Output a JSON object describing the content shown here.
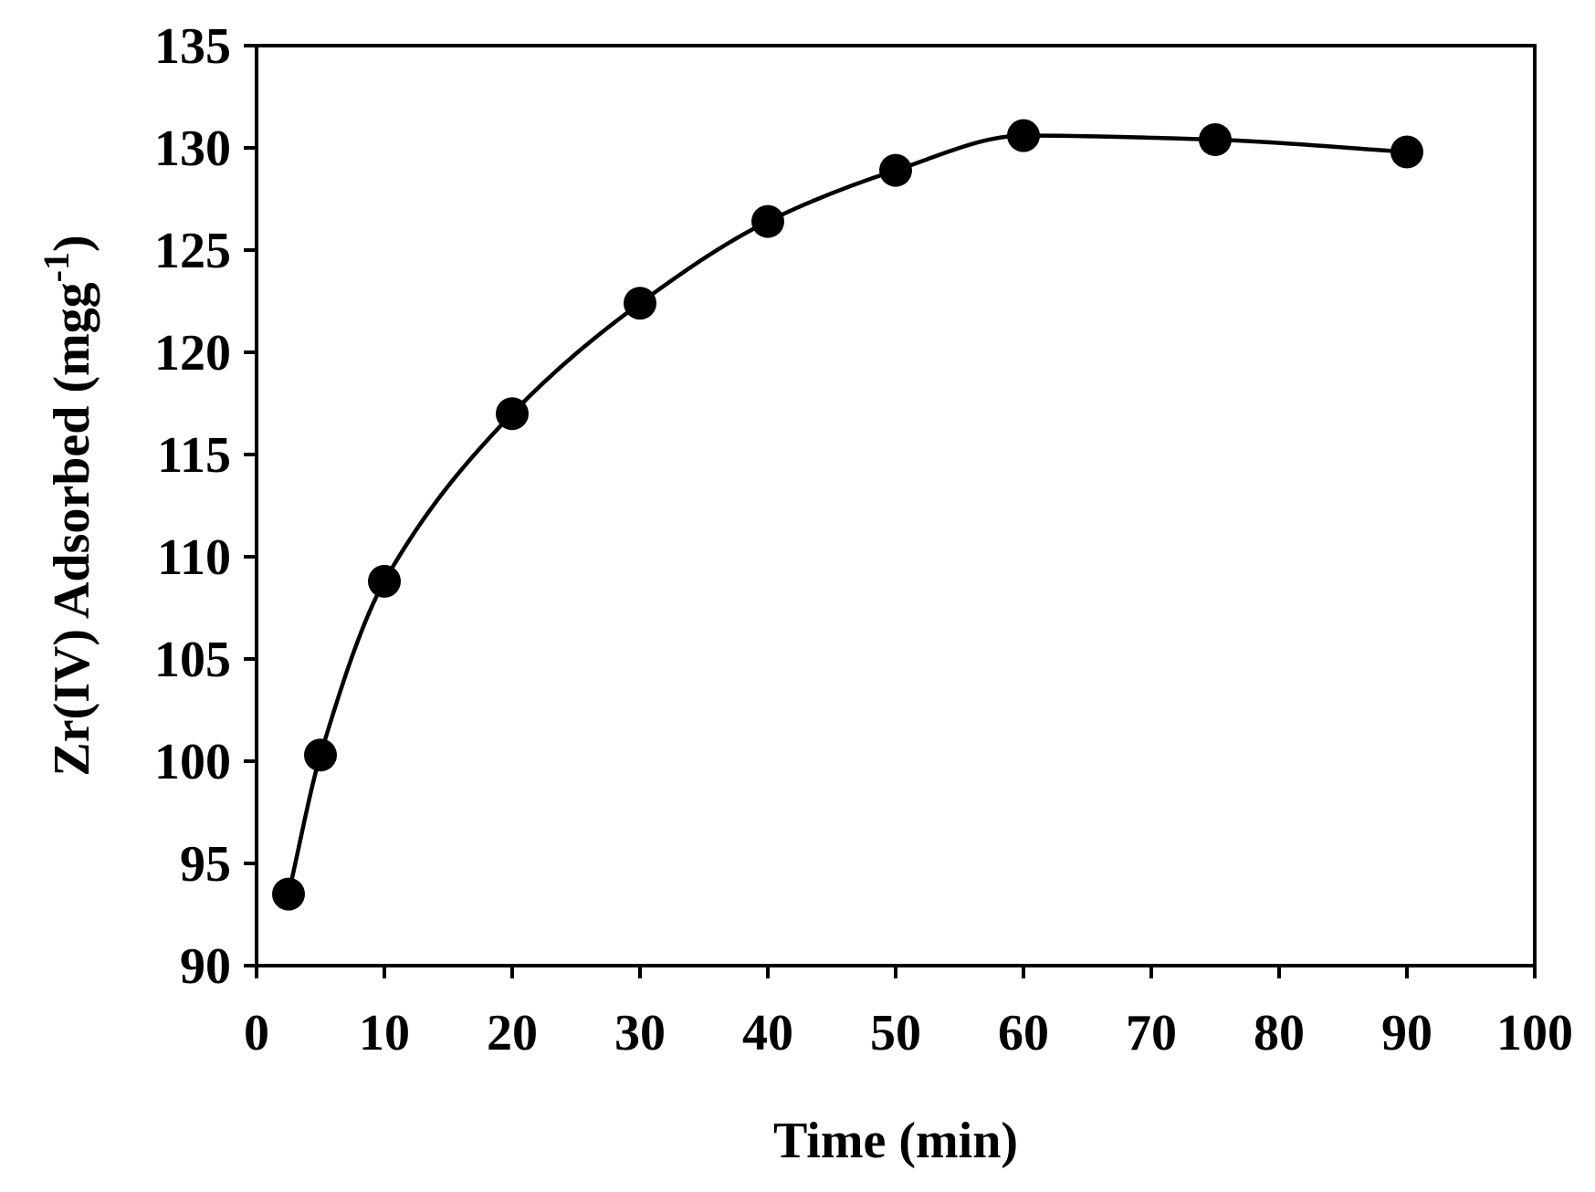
{
  "chart_data": {
    "type": "line",
    "title": "",
    "xlabel": "Time (min)",
    "ylabel": {
      "main": "Zr(IV) Adsorbed (mgg",
      "superscript": "-1",
      "close": ")"
    },
    "xlim": [
      0,
      100
    ],
    "ylim": [
      90,
      135
    ],
    "xticks": [
      0,
      10,
      20,
      30,
      40,
      50,
      60,
      70,
      80,
      90,
      100
    ],
    "yticks": [
      90,
      95,
      100,
      105,
      110,
      115,
      120,
      125,
      130,
      135
    ],
    "grid": false,
    "legend": "none",
    "series": [
      {
        "name": "Zr(IV) adsorbed",
        "marker": "filled-circle",
        "line": "smooth",
        "color": "#000000",
        "x": [
          2.5,
          5,
          10,
          20,
          30,
          40,
          50,
          60,
          75,
          90
        ],
        "y": [
          93.5,
          100.3,
          108.8,
          117.0,
          122.4,
          126.4,
          128.9,
          130.6,
          130.4,
          129.8
        ]
      }
    ]
  }
}
